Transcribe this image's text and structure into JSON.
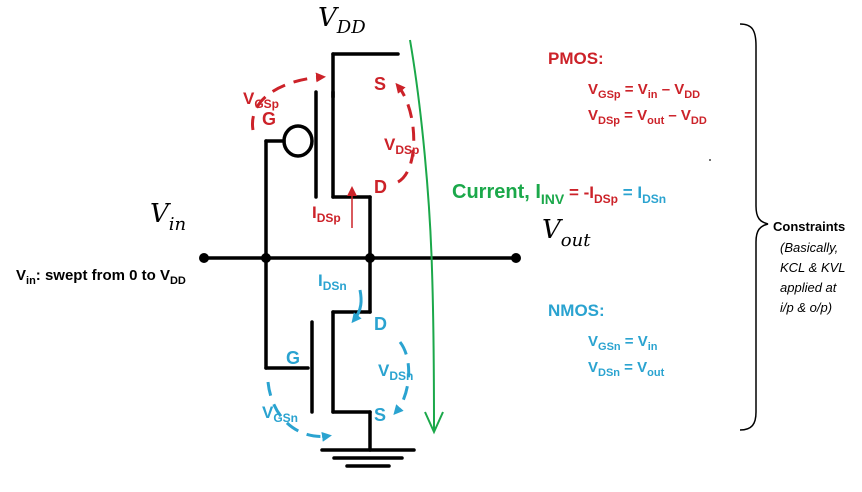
{
  "colors": {
    "pmos": "#cc2229",
    "nmos": "#2aa3d0",
    "current": "#1ba84a",
    "wire": "#000000"
  },
  "supply": {
    "main": "V",
    "sub": "DD"
  },
  "input": {
    "main": "V",
    "sub": "in"
  },
  "output": {
    "main": "V",
    "sub": "out"
  },
  "sweep": {
    "v": "V",
    "v_sub": "in",
    "text": ": swept from 0 to V",
    "dd_sub": "DD"
  },
  "pmos_device": {
    "gate": "G",
    "source": "S",
    "drain": "D",
    "vgs_main": "V",
    "vgs_sub": "GSp",
    "vds_main": "V",
    "vds_sub": "DSp",
    "ids_main": "I",
    "ids_sub": "DSp"
  },
  "nmos_device": {
    "gate": "G",
    "source": "S",
    "drain": "D",
    "vgs_main": "V",
    "vgs_sub": "GSn",
    "vds_main": "V",
    "vds_sub": "DSn",
    "ids_main": "I",
    "ids_sub": "DSn"
  },
  "pmos_eq": {
    "title": "PMOS:",
    "eq1": {
      "lhs": "V",
      "lhs_sub": "GSp",
      "mid": " = V",
      "mid_sub": "in",
      "tail": " – V",
      "tail_sub": "DD"
    },
    "eq2": {
      "lhs": "V",
      "lhs_sub": "DSp",
      "mid": " = V",
      "mid_sub": "out",
      "tail": " – V",
      "tail_sub": "DD"
    }
  },
  "current_eq": {
    "prefix": "Current, I",
    "prefix_sub": "INV",
    "mid": " = -I",
    "mid_sub": "DSp",
    "tail": " = I",
    "tail_sub": "DSn"
  },
  "nmos_eq": {
    "title": "NMOS:",
    "eq1": {
      "lhs": "V",
      "lhs_sub": "GSn",
      "rhs": " = V",
      "rhs_sub": "in"
    },
    "eq2": {
      "lhs": "V",
      "lhs_sub": "DSn",
      "rhs": " = V",
      "rhs_sub": "out"
    }
  },
  "constraints": {
    "title": "Constraints",
    "note_lines": [
      "(Basically,",
      "KCL & KVL",
      "applied at",
      "i/p & o/p)"
    ]
  }
}
